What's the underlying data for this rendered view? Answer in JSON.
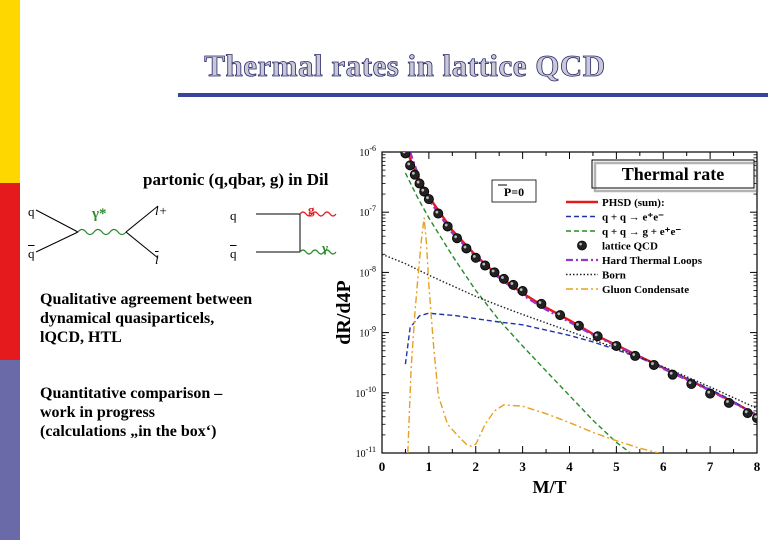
{
  "slide": {
    "title": "Thermal rates in lattice QCD",
    "partonic": "partonic (q,qbar, g) in",
    "partonic_cut": "Dil",
    "agreement_lines": [
      "Qualitative agreement between",
      "dynamical quasiparticels,",
      "lQCD, HTL"
    ],
    "comparison_lines": [
      "Quantitative comparison –",
      "work in progress",
      "(calculations „in the box‘)"
    ],
    "side_band_colors": [
      "#ffd700",
      "#e41a1c",
      "#6a6aa8"
    ],
    "accent_color": "#3a44a0"
  },
  "diagrams": {
    "left": {
      "q_in": "q",
      "qbar_in": "q",
      "photon": "γ*",
      "lepton_plus": "l+",
      "lepton_minus": "l"
    },
    "right": {
      "q_in": "q",
      "qbar_in": "q",
      "gluon": "g",
      "photon": "γ"
    }
  },
  "chart_data": {
    "type": "line",
    "title": "Thermal rate",
    "annotation": "P=0",
    "xlabel": "M/T",
    "ylabel": "dR/d4P",
    "xlim": [
      0,
      8
    ],
    "ylim": [
      1e-11,
      1e-06
    ],
    "yscale": "log",
    "x_ticks": [
      "0",
      "1",
      "2",
      "3",
      "4",
      "5",
      "6",
      "7",
      "8"
    ],
    "y_ticks": [
      "10-11",
      "10-10",
      "10-9",
      "10-8",
      "10-7",
      "10-6"
    ],
    "legend_title": "Thermal rate",
    "legend_placement": "top-right",
    "series": [
      {
        "name": "PHSD (sum):",
        "style": "solid",
        "color": "#e41a1c",
        "x": [
          0.5,
          0.75,
          1.0,
          1.5,
          2.0,
          2.5,
          3.0,
          3.5,
          4.0,
          4.5,
          5.0,
          5.5,
          6.0,
          6.5,
          7.0,
          7.5,
          8.0
        ],
        "y": [
          1.2e-06,
          4e-07,
          1.8e-07,
          5e-08,
          1.9e-08,
          8.5e-09,
          4.5e-09,
          2.6e-09,
          1.6e-09,
          9.5e-10,
          6.2e-10,
          4e-10,
          2.6e-10,
          1.7e-10,
          1.1e-10,
          7e-11,
          4.2e-11
        ]
      },
      {
        "name": "q + q → e⁺e⁻",
        "style": "dashed",
        "color": "#2233aa",
        "x": [
          0.5,
          0.6,
          0.8,
          1.0,
          1.3,
          1.6,
          2.0,
          2.5,
          3.0,
          3.5,
          4.0,
          4.5,
          5.0,
          5.5,
          6.0,
          6.5,
          7.0,
          7.5,
          8.0
        ],
        "y": [
          3e-10,
          1.2e-09,
          1.9e-09,
          2.1e-09,
          2e-09,
          1.9e-09,
          1.7e-09,
          1.5e-09,
          1.35e-09,
          1.1e-09,
          9e-10,
          7e-10,
          5.2e-10,
          3.8e-10,
          2.6e-10,
          1.75e-10,
          1.15e-10,
          7.2e-11,
          4.2e-11
        ]
      },
      {
        "name": "q + q → g + e⁺e⁻",
        "style": "dashed",
        "color": "#2a8a2a",
        "x": [
          0.5,
          0.75,
          1.0,
          1.5,
          2.0,
          2.5,
          3.0,
          3.5,
          4.0,
          4.5,
          5.0,
          5.3
        ],
        "y": [
          4.5e-07,
          1.8e-07,
          8e-08,
          1.9e-08,
          5e-09,
          1.6e-09,
          6e-10,
          2.3e-10,
          9e-11,
          3.5e-11,
          1.5e-11,
          1e-11
        ]
      },
      {
        "name": "lattice QCD",
        "style": "markers",
        "color": "#222222",
        "x": [
          0.4,
          0.5,
          0.6,
          0.7,
          0.8,
          0.9,
          1.0,
          1.2,
          1.4,
          1.6,
          1.8,
          2.0,
          2.2,
          2.4,
          2.6,
          2.8,
          3.0,
          3.4,
          3.8,
          4.2,
          4.6,
          5.0,
          5.4,
          5.8,
          6.2,
          6.6,
          7.0,
          7.4,
          7.8,
          8.0
        ],
        "y": [
          1.6e-06,
          9.5e-07,
          6e-07,
          4.2e-07,
          3e-07,
          2.2e-07,
          1.65e-07,
          9.5e-08,
          5.8e-08,
          3.7e-08,
          2.5e-08,
          1.75e-08,
          1.3e-08,
          1e-08,
          7.8e-09,
          6.2e-09,
          4.9e-09,
          3e-09,
          1.95e-09,
          1.3e-09,
          8.7e-10,
          6e-10,
          4.1e-10,
          2.9e-10,
          2e-10,
          1.4e-10,
          9.7e-11,
          6.8e-11,
          4.6e-11,
          3.8e-11
        ]
      },
      {
        "name": "Hard Thermal Loops",
        "style": "dashdot",
        "color": "#9933cc",
        "x": [
          0.6,
          0.8,
          1.0,
          1.5,
          2.0,
          2.5,
          3.0,
          3.5,
          4.0,
          4.5,
          5.0,
          5.5,
          6.0,
          6.5,
          7.0,
          7.5,
          8.0
        ],
        "y": [
          1e-06,
          3.6e-07,
          1.6e-07,
          4.5e-08,
          1.8e-08,
          8e-09,
          4.2e-09,
          2.4e-09,
          1.5e-09,
          9.2e-10,
          6e-10,
          3.9e-10,
          2.5e-10,
          1.65e-10,
          1.08e-10,
          6.8e-11,
          4.3e-11
        ]
      },
      {
        "name": "Born",
        "style": "dotted",
        "color": "#222222",
        "x": [
          0.0,
          0.5,
          1.0,
          1.5,
          2.0,
          2.5,
          3.0,
          3.5,
          4.0,
          4.5,
          5.0,
          5.5,
          6.0,
          6.5,
          7.0,
          7.5,
          8.0
        ],
        "y": [
          2e-08,
          1.4e-08,
          9e-09,
          6e-09,
          4e-09,
          2.8e-09,
          2e-09,
          1.45e-09,
          1.05e-09,
          7.6e-10,
          5.5e-10,
          3.9e-10,
          2.7e-10,
          1.85e-10,
          1.25e-10,
          8.3e-11,
          5.5e-11
        ]
      },
      {
        "name": "Gluon Condensate",
        "style": "dashdot",
        "color": "#e8a020",
        "x": [
          0.55,
          0.62,
          0.7,
          0.75,
          0.8,
          0.85,
          0.9,
          0.95,
          1.0,
          1.1,
          1.2,
          1.4,
          1.6,
          1.8,
          1.9,
          2.0,
          2.2,
          2.4,
          2.6,
          3.0,
          3.5,
          4.0,
          4.5,
          5.0,
          5.5,
          5.9
        ],
        "y": [
          1e-11,
          2.5e-10,
          2e-09,
          6e-09,
          1.6e-08,
          4e-08,
          8e-08,
          3e-08,
          6e-09,
          6e-10,
          9e-11,
          3e-11,
          2e-11,
          1.4e-11,
          1.3e-11,
          1.4e-11,
          3e-11,
          5e-11,
          6.3e-11,
          6e-11,
          4.5e-11,
          3.2e-11,
          2.2e-11,
          1.6e-11,
          1.2e-11,
          1e-11
        ]
      }
    ]
  }
}
